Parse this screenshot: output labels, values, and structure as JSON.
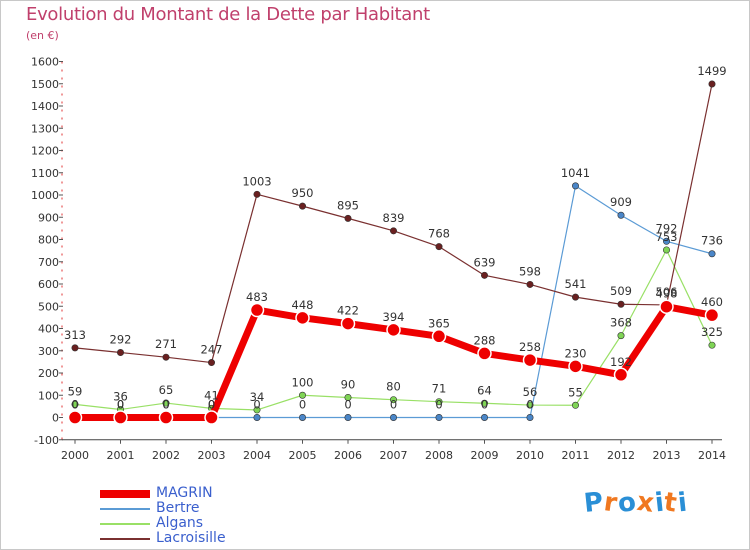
{
  "chart_data": {
    "type": "line",
    "title": "Evolution du Montant de la Dette par Habitant",
    "subtitle": "(en €)",
    "x": [
      "2000",
      "2001",
      "2002",
      "2003",
      "2004",
      "2005",
      "2006",
      "2007",
      "2008",
      "2009",
      "2010",
      "2011",
      "2012",
      "2013",
      "2014"
    ],
    "ylim": [
      -100,
      1600
    ],
    "yticks": [
      -100,
      0,
      100,
      200,
      300,
      400,
      500,
      600,
      700,
      800,
      900,
      1000,
      1100,
      1200,
      1300,
      1400,
      1500,
      1600
    ],
    "grid": false,
    "legend_position": "bottom-left",
    "series": [
      {
        "name": "MAGRIN",
        "color": "#ee0000",
        "values": [
          0,
          0,
          0,
          0,
          483,
          448,
          422,
          394,
          365,
          288,
          258,
          230,
          192,
          498,
          460
        ],
        "labels": [
          "0",
          "0",
          "0",
          "0",
          "483",
          "448",
          "422",
          "394",
          "365",
          "288",
          "258",
          "230",
          "192",
          "498",
          "460"
        ]
      },
      {
        "name": "Bertre",
        "color": "#5b9bd5",
        "values": [
          0,
          0,
          0,
          0,
          0,
          0,
          0,
          0,
          0,
          0,
          0,
          1041,
          909,
          792,
          736
        ],
        "labels": [
          "0",
          "0",
          "0",
          "0",
          "0",
          "0",
          "0",
          "0",
          "0",
          "0",
          "0",
          "1041",
          "909",
          "792",
          "736"
        ]
      },
      {
        "name": "Algans",
        "color": "#99e066",
        "values": [
          59,
          36,
          65,
          41,
          34,
          100,
          90,
          80,
          71,
          64,
          56,
          55,
          368,
          753,
          325
        ],
        "labels": [
          "59",
          "36",
          "65",
          "41",
          "34",
          "100",
          "90",
          "80",
          "71",
          "64",
          "56",
          "55",
          "368",
          "753",
          "325"
        ]
      },
      {
        "name": "Lacroisille",
        "color": "#7a3030",
        "values": [
          313,
          292,
          271,
          247,
          1003,
          950,
          895,
          839,
          768,
          639,
          598,
          541,
          509,
          506,
          1499
        ],
        "labels": [
          "313",
          "292",
          "271",
          "247",
          "1003",
          "950",
          "895",
          "839",
          "768",
          "639",
          "598",
          "541",
          "509",
          "506",
          "1499"
        ]
      }
    ]
  },
  "logo": {
    "text": "Proxiti",
    "letters": [
      "P",
      "r",
      "o",
      "x",
      "i",
      "t",
      "i"
    ]
  }
}
